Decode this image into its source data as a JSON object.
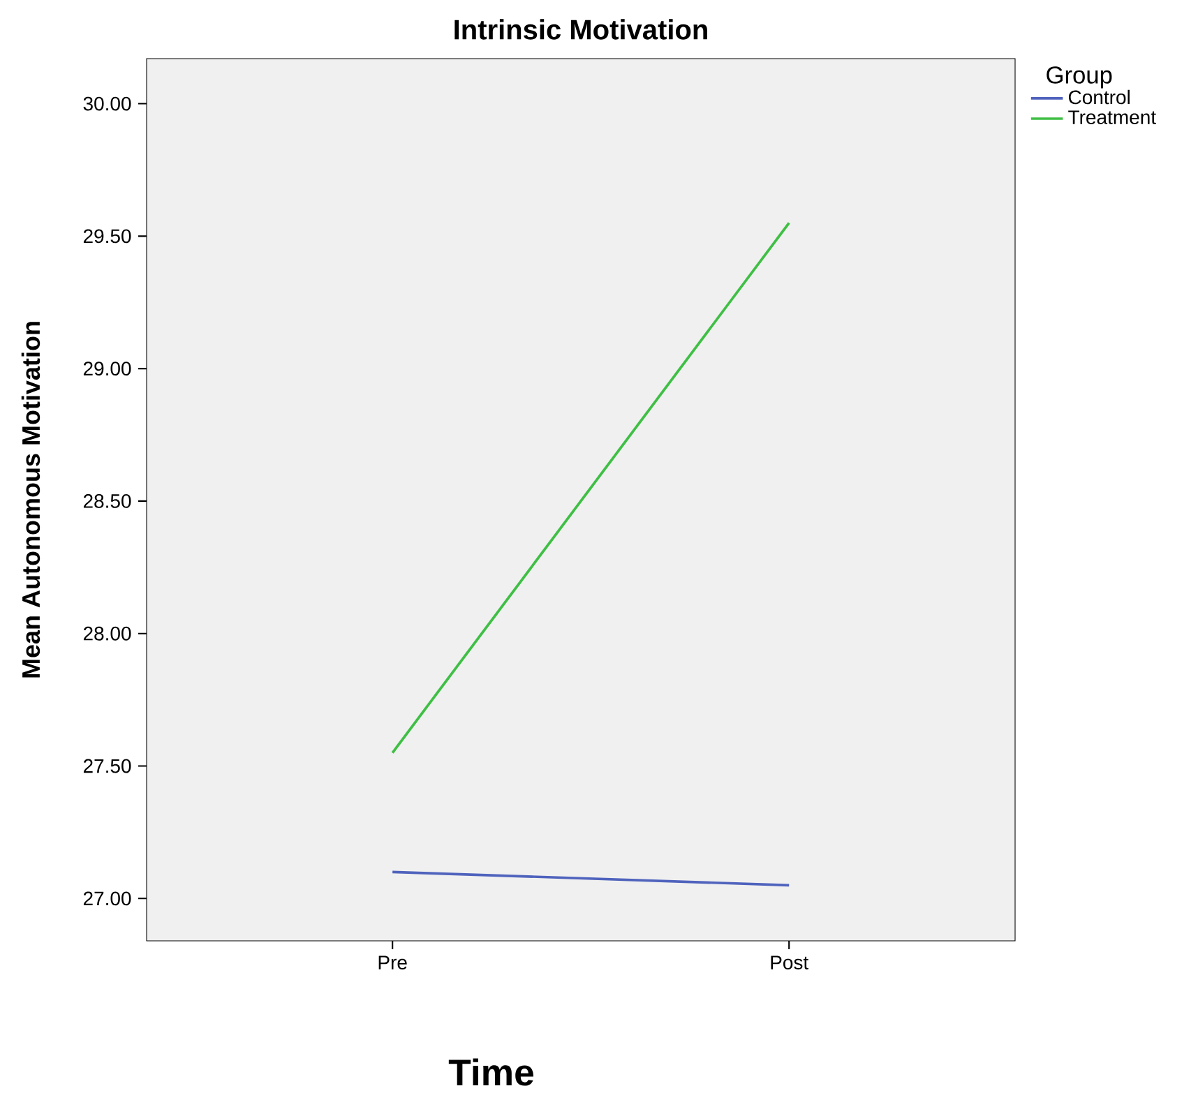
{
  "chart_data": {
    "type": "line",
    "title": "Intrinsic Motivation",
    "xlabel": "Time",
    "ylabel": "Mean Autonomous Motivation",
    "legend_title": "Group",
    "categories": [
      "Pre",
      "Post"
    ],
    "series": [
      {
        "name": "Control",
        "color": "#4f63bd",
        "values": [
          27.1,
          27.05
        ]
      },
      {
        "name": "Treatment",
        "color": "#3fbf45",
        "values": [
          27.55,
          29.55
        ]
      }
    ],
    "ylim": [
      26.84,
      30.17
    ],
    "yticks": [
      {
        "value": 27,
        "label": "27.00"
      },
      {
        "value": 27.5,
        "label": "27.50"
      },
      {
        "value": 28,
        "label": "28.00"
      },
      {
        "value": 28.5,
        "label": "28.50"
      },
      {
        "value": 29,
        "label": "29.00"
      },
      {
        "value": 29.5,
        "label": "29.50"
      },
      {
        "value": 30,
        "label": "30.00"
      }
    ],
    "grid": false,
    "legend": "top right",
    "marker": "none",
    "line_style": "solid"
  }
}
